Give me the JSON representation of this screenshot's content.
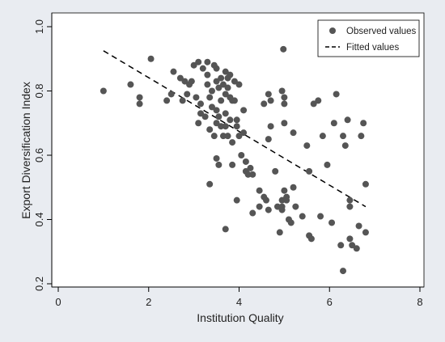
{
  "chart_data": {
    "type": "scatter",
    "xlabel": "Institution Quality",
    "ylabel": "Export Diversification Index",
    "xlim": [
      0,
      8
    ],
    "ylim": [
      0.2,
      1.0
    ],
    "xticks": [
      0,
      2,
      4,
      6,
      8
    ],
    "yticks": [
      0.2,
      0.4,
      0.6,
      0.8,
      1.0
    ],
    "xtick_labels": [
      "0",
      "2",
      "4",
      "6",
      "8"
    ],
    "ytick_labels": [
      "0.2",
      "0.4",
      "0.6",
      "0.8",
      "1.0"
    ],
    "grid": false,
    "legend_position": "top-right",
    "colors": {
      "points": "#555555",
      "fitted": "#000000",
      "plot_bg": "#ffffff",
      "outer_bg": "#e9ecf1"
    },
    "series": [
      {
        "name": "Observed values",
        "kind": "scatter",
        "points": [
          [
            1.0,
            0.8
          ],
          [
            1.6,
            0.82
          ],
          [
            1.8,
            0.78
          ],
          [
            1.8,
            0.76
          ],
          [
            2.05,
            0.9
          ],
          [
            2.4,
            0.77
          ],
          [
            2.5,
            0.79
          ],
          [
            2.55,
            0.86
          ],
          [
            2.7,
            0.84
          ],
          [
            2.75,
            0.77
          ],
          [
            2.8,
            0.83
          ],
          [
            2.85,
            0.79
          ],
          [
            2.9,
            0.82
          ],
          [
            2.95,
            0.83
          ],
          [
            3.0,
            0.88
          ],
          [
            3.05,
            0.78
          ],
          [
            3.1,
            0.89
          ],
          [
            3.1,
            0.7
          ],
          [
            3.15,
            0.76
          ],
          [
            3.15,
            0.73
          ],
          [
            3.2,
            0.87
          ],
          [
            3.25,
            0.72
          ],
          [
            3.3,
            0.89
          ],
          [
            3.3,
            0.85
          ],
          [
            3.3,
            0.82
          ],
          [
            3.35,
            0.78
          ],
          [
            3.35,
            0.68
          ],
          [
            3.35,
            0.51
          ],
          [
            3.4,
            0.8
          ],
          [
            3.4,
            0.75
          ],
          [
            3.45,
            0.88
          ],
          [
            3.45,
            0.66
          ],
          [
            3.5,
            0.87
          ],
          [
            3.5,
            0.83
          ],
          [
            3.5,
            0.74
          ],
          [
            3.5,
            0.7
          ],
          [
            3.5,
            0.59
          ],
          [
            3.55,
            0.81
          ],
          [
            3.55,
            0.72
          ],
          [
            3.55,
            0.57
          ],
          [
            3.6,
            0.84
          ],
          [
            3.6,
            0.77
          ],
          [
            3.6,
            0.69
          ],
          [
            3.65,
            0.82
          ],
          [
            3.65,
            0.66
          ],
          [
            3.7,
            0.86
          ],
          [
            3.7,
            0.79
          ],
          [
            3.7,
            0.73
          ],
          [
            3.7,
            0.69
          ],
          [
            3.7,
            0.37
          ],
          [
            3.75,
            0.84
          ],
          [
            3.75,
            0.81
          ],
          [
            3.75,
            0.66
          ],
          [
            3.8,
            0.85
          ],
          [
            3.8,
            0.78
          ],
          [
            3.8,
            0.71
          ],
          [
            3.85,
            0.77
          ],
          [
            3.85,
            0.64
          ],
          [
            3.85,
            0.57
          ],
          [
            3.9,
            0.83
          ],
          [
            3.9,
            0.77
          ],
          [
            3.95,
            0.71
          ],
          [
            3.95,
            0.69
          ],
          [
            3.95,
            0.46
          ],
          [
            4.0,
            0.82
          ],
          [
            4.0,
            0.66
          ],
          [
            4.05,
            0.6
          ],
          [
            4.1,
            0.74
          ],
          [
            4.1,
            0.67
          ],
          [
            4.15,
            0.58
          ],
          [
            4.15,
            0.55
          ],
          [
            4.2,
            0.54
          ],
          [
            4.25,
            0.56
          ],
          [
            4.3,
            0.42
          ],
          [
            4.3,
            0.54
          ],
          [
            4.45,
            0.44
          ],
          [
            4.45,
            0.49
          ],
          [
            4.55,
            0.47
          ],
          [
            4.55,
            0.76
          ],
          [
            4.6,
            0.46
          ],
          [
            4.65,
            0.79
          ],
          [
            4.65,
            0.65
          ],
          [
            4.65,
            0.43
          ],
          [
            4.7,
            0.77
          ],
          [
            4.7,
            0.69
          ],
          [
            4.8,
            0.55
          ],
          [
            4.85,
            0.44
          ],
          [
            4.9,
            0.36
          ],
          [
            4.95,
            0.8
          ],
          [
            4.95,
            0.46
          ],
          [
            4.95,
            0.44
          ],
          [
            4.95,
            0.43
          ],
          [
            4.98,
            0.93
          ],
          [
            5.0,
            0.78
          ],
          [
            5.0,
            0.76
          ],
          [
            5.0,
            0.7
          ],
          [
            5.0,
            0.49
          ],
          [
            5.05,
            0.47
          ],
          [
            5.05,
            0.46
          ],
          [
            5.1,
            0.4
          ],
          [
            5.15,
            0.39
          ],
          [
            5.2,
            0.67
          ],
          [
            5.2,
            0.5
          ],
          [
            5.25,
            0.44
          ],
          [
            5.4,
            0.41
          ],
          [
            5.5,
            0.63
          ],
          [
            5.55,
            0.55
          ],
          [
            5.55,
            0.35
          ],
          [
            5.6,
            0.34
          ],
          [
            5.65,
            0.76
          ],
          [
            5.75,
            0.77
          ],
          [
            5.8,
            0.41
          ],
          [
            5.85,
            0.66
          ],
          [
            5.95,
            0.57
          ],
          [
            6.05,
            0.39
          ],
          [
            6.1,
            0.7
          ],
          [
            6.15,
            0.79
          ],
          [
            6.25,
            0.32
          ],
          [
            6.3,
            0.24
          ],
          [
            6.3,
            0.66
          ],
          [
            6.35,
            0.63
          ],
          [
            6.4,
            0.71
          ],
          [
            6.45,
            0.46
          ],
          [
            6.45,
            0.44
          ],
          [
            6.45,
            0.34
          ],
          [
            6.5,
            0.32
          ],
          [
            6.6,
            0.31
          ],
          [
            6.7,
            0.66
          ],
          [
            6.75,
            0.7
          ],
          [
            6.8,
            0.51
          ],
          [
            6.8,
            0.36
          ],
          [
            6.65,
            0.38
          ]
        ]
      },
      {
        "name": "Fitted values",
        "kind": "line",
        "points": [
          [
            1.0,
            0.925
          ],
          [
            6.8,
            0.44
          ]
        ]
      }
    ]
  }
}
